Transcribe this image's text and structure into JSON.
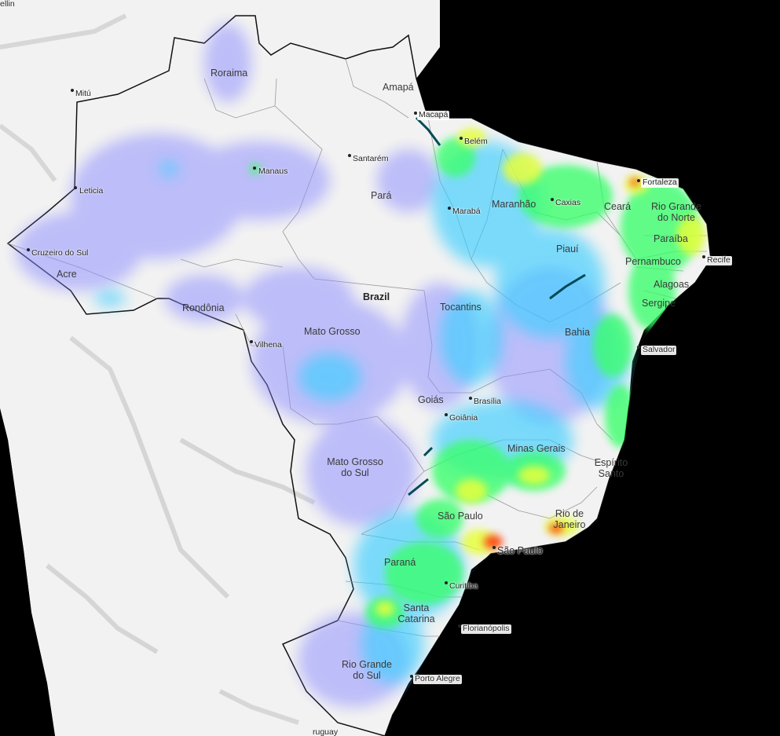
{
  "map": {
    "country_label": "Brazil",
    "edge_labels": {
      "top_left": "ellin",
      "bottom": "ruguay"
    },
    "states": [
      "Roraima",
      "Amapá",
      "Pará",
      "Maranhão",
      "Ceará",
      "Rio Grande do Norte",
      "Paraíba",
      "Piauí",
      "Pernambuco",
      "Alagoas",
      "Sergipe",
      "Bahia",
      "Tocantins",
      "Acre",
      "Rondônia",
      "Mato Grosso",
      "Goiás",
      "Minas Gerais",
      "Espírito Santo",
      "Mato Grosso do Sul",
      "São Paulo",
      "Rio de Janeiro",
      "Paraná",
      "Santa Catarina",
      "Rio Grande do Sul"
    ],
    "cities": [
      "Mitú",
      "Leticia",
      "Manaus",
      "Santarém",
      "Macapá",
      "Belém",
      "Marabá",
      "Caxias",
      "Fortaleza",
      "Recife",
      "Salvador",
      "Cruzeiro do Sul",
      "Vilhena",
      "Brasília",
      "Goiânia",
      "São Paulo",
      "Curitiba",
      "Florianópolis",
      "Porto Alegre"
    ]
  },
  "heatmap": {
    "type": "density-heatmap",
    "colors": {
      "low": "#8c8cff",
      "mid": "#33ccff",
      "high": "#33ff66",
      "higher": "#e6ff33",
      "peak": "#ff3300",
      "ocean": "#000000",
      "land": "#f2f2f2"
    }
  }
}
